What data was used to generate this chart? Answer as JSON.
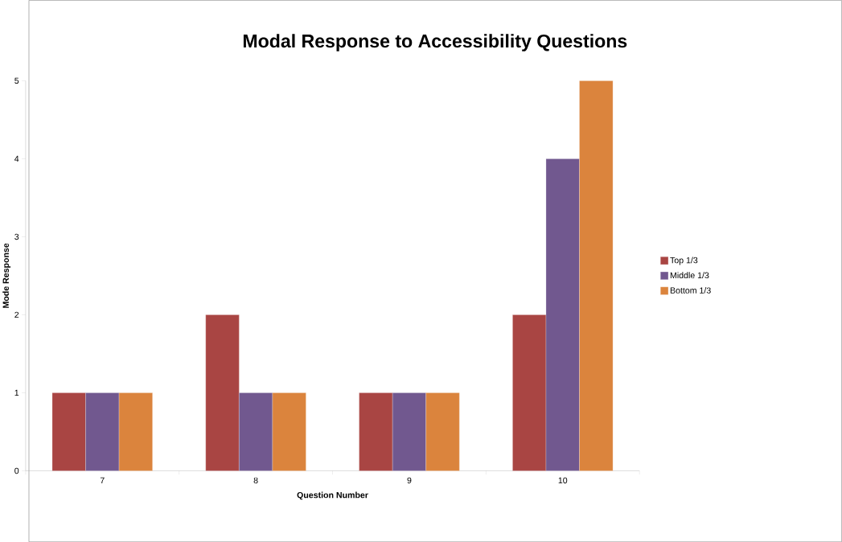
{
  "chart_data": {
    "type": "bar",
    "title": "Modal Response to Accessibility Questions",
    "xlabel": "Question Number",
    "ylabel": "Mode Response",
    "categories": [
      "7",
      "8",
      "9",
      "10"
    ],
    "series": [
      {
        "name": "Top 1/3",
        "color": "#a94543",
        "values": [
          1,
          2,
          1,
          2
        ]
      },
      {
        "name": "Middle 1/3",
        "color": "#71588f",
        "values": [
          1,
          1,
          1,
          4
        ]
      },
      {
        "name": "Bottom 1/3",
        "color": "#db843d",
        "values": [
          1,
          1,
          1,
          5
        ]
      }
    ],
    "ylim": [
      0,
      5
    ],
    "yticks": [
      0,
      1,
      2,
      3,
      4,
      5
    ],
    "legend": "right"
  }
}
